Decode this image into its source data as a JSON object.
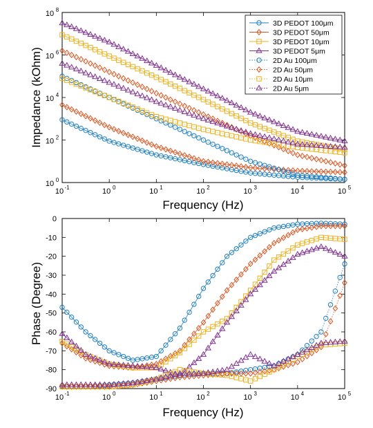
{
  "series_styles": [
    {
      "name": "3D PEDOT 100μm",
      "color": "#1f7fc0",
      "marker": "circle",
      "line": "solid"
    },
    {
      "name": "3D PEDOT 50μm",
      "color": "#d9531e",
      "marker": "diamond",
      "line": "solid"
    },
    {
      "name": "3D PEDOT 10μm",
      "color": "#edb120",
      "marker": "square",
      "line": "solid"
    },
    {
      "name": "3D PEDOT 5μm",
      "color": "#7e2f8e",
      "marker": "triangle",
      "line": "solid"
    },
    {
      "name": "2D Au 100μm",
      "color": "#1f7fc0",
      "marker": "circle",
      "line": "dotted"
    },
    {
      "name": "2D Au 50μm",
      "color": "#d9531e",
      "marker": "diamond",
      "line": "dotted"
    },
    {
      "name": "2D Au 10μm",
      "color": "#edb120",
      "marker": "square",
      "line": "dotted"
    },
    {
      "name": "2D Au 5μm",
      "color": "#7e2f8e",
      "marker": "triangle",
      "line": "dotted"
    }
  ],
  "chart_data": [
    {
      "type": "scatter",
      "title": "",
      "xlabel": "Frequency (Hz)",
      "ylabel": "Impedance (kOhm)",
      "xscale": "log",
      "yscale": "log",
      "xlim": [
        0.1,
        100000
      ],
      "ylim": [
        1,
        100000000
      ],
      "x_ticks": [
        {
          "base": "10",
          "exp": "-1"
        },
        {
          "base": "10",
          "exp": "0"
        },
        {
          "base": "10",
          "exp": "1"
        },
        {
          "base": "10",
          "exp": "2"
        },
        {
          "base": "10",
          "exp": "3"
        },
        {
          "base": "10",
          "exp": "4"
        },
        {
          "base": "10",
          "exp": "5"
        }
      ],
      "y_ticks": [
        {
          "base": "10",
          "exp": "0"
        },
        {
          "base": "10",
          "exp": "2"
        },
        {
          "base": "10",
          "exp": "4"
        },
        {
          "base": "10",
          "exp": "6"
        },
        {
          "base": "10",
          "exp": "8"
        }
      ],
      "legend": "top-right",
      "grid": false,
      "series": [
        {
          "name": "3D PEDOT 100μm",
          "x_log": [
            -1,
            0,
            1,
            2,
            3,
            4,
            5
          ],
          "y_log": [
            2.95,
            1.95,
            1.3,
            0.85,
            0.45,
            0.25,
            0.15
          ]
        },
        {
          "name": "3D PEDOT 50μm",
          "x_log": [
            -1,
            0,
            1,
            2,
            3,
            4,
            5
          ],
          "y_log": [
            3.65,
            2.6,
            1.7,
            1.0,
            0.7,
            0.55,
            0.48
          ]
        },
        {
          "name": "3D PEDOT 10μm",
          "x_log": [
            -1,
            0,
            1,
            2,
            3,
            4,
            5
          ],
          "y_log": [
            6.95,
            5.95,
            4.95,
            3.9,
            2.8,
            1.95,
            1.55
          ]
        },
        {
          "name": "3D PEDOT 5μm",
          "x_log": [
            -1,
            0,
            1,
            2,
            3,
            4,
            5
          ],
          "y_log": [
            7.5,
            6.6,
            5.5,
            4.4,
            3.3,
            2.4,
            1.95
          ]
        },
        {
          "name": "2D Au 100μm",
          "x_log": [
            -1,
            0,
            1,
            2,
            3,
            4,
            5
          ],
          "y_log": [
            5.0,
            4.0,
            3.0,
            2.0,
            1.0,
            0.35,
            0.15
          ]
        },
        {
          "name": "2D Au 50μm",
          "x_log": [
            -1,
            0,
            1,
            2,
            3,
            4,
            5
          ],
          "y_log": [
            6.2,
            5.2,
            4.2,
            3.2,
            2.2,
            1.3,
            0.8
          ]
        },
        {
          "name": "2D Au 10μm",
          "x_log": [
            -1,
            0,
            1,
            2,
            3,
            4,
            5
          ],
          "y_log": [
            4.9,
            4.0,
            3.1,
            2.5,
            2.0,
            1.65,
            1.4
          ]
        },
        {
          "name": "2D Au 5μm",
          "x_log": [
            -1,
            0,
            1,
            2,
            3,
            4,
            5
          ],
          "y_log": [
            5.6,
            4.7,
            3.8,
            3.0,
            2.3,
            1.8,
            1.65
          ]
        }
      ]
    },
    {
      "type": "scatter",
      "title": "",
      "xlabel": "Frequency (Hz)",
      "ylabel": "Phase (Degree)",
      "xscale": "log",
      "yscale": "linear",
      "xlim": [
        0.1,
        100000
      ],
      "ylim": [
        -90,
        0
      ],
      "x_ticks": [
        {
          "base": "10",
          "exp": "-1"
        },
        {
          "base": "10",
          "exp": "0"
        },
        {
          "base": "10",
          "exp": "1"
        },
        {
          "base": "10",
          "exp": "2"
        },
        {
          "base": "10",
          "exp": "3"
        },
        {
          "base": "10",
          "exp": "4"
        },
        {
          "base": "10",
          "exp": "5"
        }
      ],
      "y_ticks": [
        "0",
        "-10",
        "-20",
        "-30",
        "-40",
        "-50",
        "-60",
        "-70",
        "-80",
        "-90"
      ],
      "legend": "none",
      "grid": false,
      "series": [
        {
          "name": "3D PEDOT 100μm",
          "x_log": [
            -1,
            -0.5,
            0,
            0.5,
            1,
            1.5,
            2,
            2.5,
            3,
            3.5,
            4,
            4.5,
            5
          ],
          "y": [
            -47,
            -60,
            -70,
            -75,
            -73,
            -58,
            -37,
            -20,
            -10,
            -5,
            -3,
            -2.5,
            -3
          ]
        },
        {
          "name": "3D PEDOT 50μm",
          "x_log": [
            -1,
            -0.5,
            0,
            0.5,
            1,
            1.5,
            2,
            2.5,
            3,
            3.5,
            4,
            4.5,
            5
          ],
          "y": [
            -66,
            -74,
            -78,
            -79,
            -77,
            -70,
            -55,
            -38,
            -24,
            -13,
            -6,
            -4,
            -4
          ]
        },
        {
          "name": "3D PEDOT 10μm",
          "x_log": [
            -1,
            -0.5,
            0,
            0.5,
            1,
            1.5,
            2,
            2.5,
            3,
            3.5,
            4,
            4.5,
            5
          ],
          "y": [
            -65,
            -72,
            -77,
            -79,
            -79,
            -71,
            -60,
            -53,
            -38,
            -22,
            -14,
            -10,
            -11
          ]
        },
        {
          "name": "3D PEDOT 5μm",
          "x_log": [
            -1,
            -0.5,
            0,
            0.5,
            1,
            1.5,
            2,
            2.5,
            3,
            3.5,
            4,
            4.5,
            5
          ],
          "y": [
            -61,
            -72,
            -77,
            -78,
            -79,
            -83,
            -72,
            -55,
            -40,
            -28,
            -19,
            -15,
            -20
          ]
        },
        {
          "name": "2D Au 100μm",
          "x_log": [
            -1,
            -0.5,
            0,
            0.5,
            1,
            1.5,
            2,
            2.5,
            3,
            3.5,
            4,
            4.5,
            5
          ],
          "y": [
            -89,
            -89,
            -88,
            -87,
            -85,
            -83,
            -82,
            -82,
            -80,
            -78,
            -72,
            -60,
            -24
          ]
        },
        {
          "name": "2D Au 50μm",
          "x_log": [
            -1,
            -0.5,
            0,
            0.5,
            1,
            1.5,
            2,
            2.5,
            3,
            3.5,
            4,
            4.5,
            5
          ],
          "y": [
            -89,
            -89,
            -89,
            -88,
            -86,
            -84,
            -83,
            -82,
            -82,
            -80,
            -76,
            -68,
            -34
          ]
        },
        {
          "name": "2D Au 10μm",
          "x_log": [
            -1,
            -0.5,
            0,
            0.5,
            1,
            1.5,
            2,
            2.5,
            3,
            3.5,
            4,
            4.5,
            5
          ],
          "y": [
            -89,
            -89,
            -89,
            -88,
            -85,
            -80,
            -82,
            -83,
            -86,
            -80,
            -73,
            -67,
            -66
          ]
        },
        {
          "name": "2D Au 5μm",
          "x_log": [
            -1,
            -0.5,
            0,
            0.5,
            1,
            1.5,
            2,
            2.5,
            3,
            3.5,
            4,
            4.5,
            5
          ],
          "y": [
            -88,
            -88,
            -88,
            -87,
            -85,
            -82,
            -82,
            -80,
            -72,
            -78,
            -72,
            -66,
            -65
          ]
        }
      ]
    }
  ]
}
